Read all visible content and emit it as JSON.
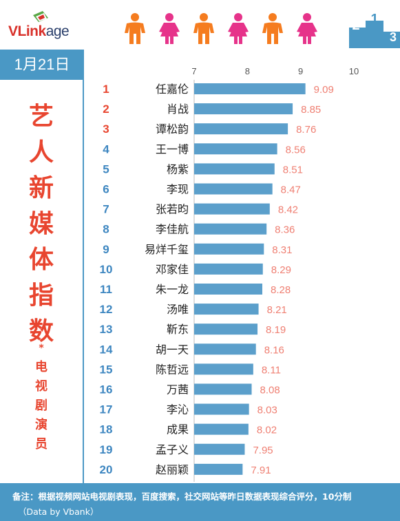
{
  "brand": {
    "logo_bold": "VLink",
    "logo_thin": "age"
  },
  "date": "1月21日",
  "title_chars": [
    "艺",
    "人",
    "新",
    "媒",
    "体",
    "指",
    "数"
  ],
  "star": "*",
  "subtitle_chars": [
    "电",
    "视",
    "剧",
    "演",
    "员"
  ],
  "podium_labels": [
    "2",
    "1",
    "3"
  ],
  "footnote": {
    "line1": "备注：根据视频网站电视剧表现，百度搜索，社交网站等昨日数据表现综合评分，10分制",
    "line2": "（Data by Vbank）"
  },
  "colors": {
    "bar": "#5b9fcb",
    "accent": "#e8452f",
    "value": "#ef7f72",
    "rank_top": "#e8452f",
    "rank_rest": "#3d86c0",
    "panel": "#4a98c5",
    "person_male": "#f57c1f",
    "person_female": "#e6338a"
  },
  "people_icons": [
    "male-icon",
    "female-icon",
    "male-icon",
    "female-icon",
    "male-icon",
    "female-icon"
  ],
  "chart_data": {
    "type": "bar",
    "orientation": "horizontal",
    "xlim": [
      7,
      10
    ],
    "xticks": [
      7,
      8,
      9,
      10
    ],
    "ranks": [
      "1",
      "2",
      "3",
      "4",
      "5",
      "6",
      "7",
      "8",
      "9",
      "10",
      "11",
      "12",
      "13",
      "14",
      "15",
      "16",
      "17",
      "18",
      "19",
      "20"
    ],
    "categories": [
      "任嘉伦",
      "肖战",
      "谭松韵",
      "王一博",
      "杨紫",
      "李现",
      "张若昀",
      "李佳航",
      "易烊千玺",
      "邓家佳",
      "朱一龙",
      "汤唯",
      "靳东",
      "胡一天",
      "陈哲远",
      "万茜",
      "李沁",
      "成果",
      "孟子义",
      "赵丽颖"
    ],
    "values": [
      9.09,
      8.85,
      8.76,
      8.56,
      8.51,
      8.47,
      8.42,
      8.36,
      8.31,
      8.29,
      8.28,
      8.21,
      8.19,
      8.16,
      8.11,
      8.08,
      8.03,
      8.02,
      7.95,
      7.91
    ],
    "value_labels": [
      "9.09",
      "8.85",
      "8.76",
      "8.56",
      "8.51",
      "8.47",
      "8.42",
      "8.36",
      "8.31",
      "8.29",
      "8.28",
      "8.21",
      "8.19",
      "8.16",
      "8.11",
      "8.08",
      "8.03",
      "8.02",
      "7.95",
      "7.91"
    ],
    "grid": false,
    "legend": "none"
  }
}
